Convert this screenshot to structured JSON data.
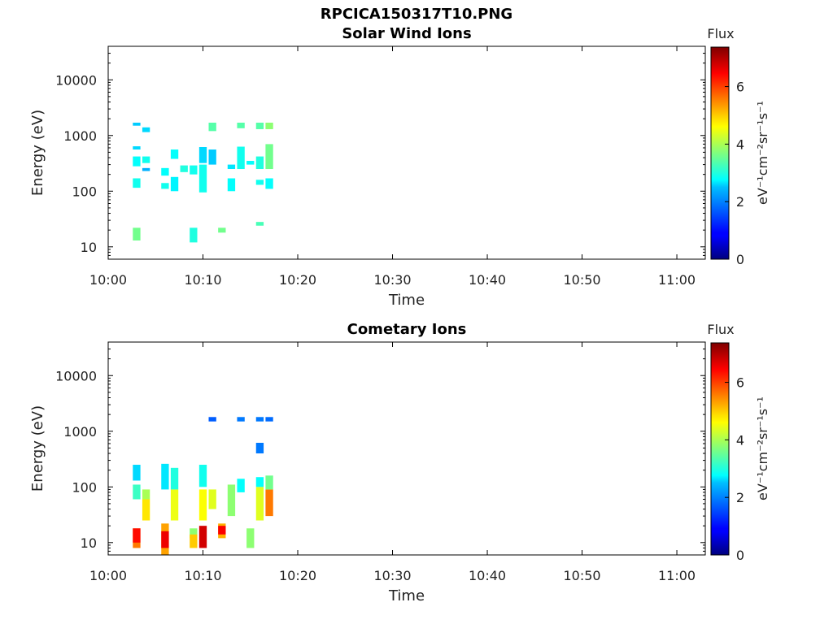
{
  "figure": {
    "title": "RPCICA150317T10.PNG"
  },
  "chart_data": [
    {
      "type": "heatmap",
      "title": "Solar Wind Ions",
      "xlabel": "Time",
      "ylabel": "Energy (eV)",
      "y_scale": "log",
      "ylim": [
        6,
        40000
      ],
      "xlim": [
        "10:00",
        "11:03"
      ],
      "x_ticks": [
        "10:00",
        "10:10",
        "10:20",
        "10:30",
        "10:40",
        "10:50",
        "11:00"
      ],
      "y_ticks": [
        "10",
        "100",
        "1000",
        "10000"
      ],
      "colorbar": {
        "title": "Flux",
        "label": "eV⁻¹cm⁻²sr⁻¹s⁻¹",
        "range": [
          0,
          7.4
        ],
        "ticks": [
          "0",
          "2",
          "4",
          "6"
        ],
        "colormap": "jet"
      },
      "cells": [
        {
          "t": "10:03",
          "emin": 13,
          "emax": 22,
          "v": 3.6
        },
        {
          "t": "10:03",
          "emin": 115,
          "emax": 170,
          "v": 2.9
        },
        {
          "t": "10:03",
          "emin": 280,
          "emax": 420,
          "v": 2.8
        },
        {
          "t": "10:03",
          "emin": 560,
          "emax": 640,
          "v": 2.5
        },
        {
          "t": "10:03",
          "emin": 1500,
          "emax": 1700,
          "v": 2.4
        },
        {
          "t": "10:04",
          "emin": 230,
          "emax": 260,
          "v": 2.2
        },
        {
          "t": "10:04",
          "emin": 320,
          "emax": 420,
          "v": 2.9
        },
        {
          "t": "10:04",
          "emin": 1150,
          "emax": 1400,
          "v": 2.5
        },
        {
          "t": "10:06",
          "emin": 110,
          "emax": 140,
          "v": 2.9
        },
        {
          "t": "10:06",
          "emin": 190,
          "emax": 260,
          "v": 2.8
        },
        {
          "t": "10:07",
          "emin": 100,
          "emax": 180,
          "v": 2.7
        },
        {
          "t": "10:07",
          "emin": 380,
          "emax": 560,
          "v": 2.8
        },
        {
          "t": "10:08",
          "emin": 220,
          "emax": 290,
          "v": 3.0
        },
        {
          "t": "10:09",
          "emin": 200,
          "emax": 290,
          "v": 2.9
        },
        {
          "t": "10:09",
          "emin": 12,
          "emax": 22,
          "v": 3.0
        },
        {
          "t": "10:10",
          "emin": 95,
          "emax": 300,
          "v": 2.9
        },
        {
          "t": "10:10",
          "emin": 320,
          "emax": 620,
          "v": 2.5
        },
        {
          "t": "10:11",
          "emin": 1200,
          "emax": 1700,
          "v": 3.4
        },
        {
          "t": "10:11",
          "emin": 300,
          "emax": 560,
          "v": 2.4
        },
        {
          "t": "10:12",
          "emin": 18,
          "emax": 22,
          "v": 3.6
        },
        {
          "t": "10:13",
          "emin": 100,
          "emax": 170,
          "v": 2.8
        },
        {
          "t": "10:13",
          "emin": 250,
          "emax": 300,
          "v": 2.6
        },
        {
          "t": "10:14",
          "emin": 1350,
          "emax": 1700,
          "v": 3.4
        },
        {
          "t": "10:14",
          "emin": 250,
          "emax": 630,
          "v": 2.9
        },
        {
          "t": "10:15",
          "emin": 300,
          "emax": 350,
          "v": 2.8
        },
        {
          "t": "10:16",
          "emin": 130,
          "emax": 160,
          "v": 2.9
        },
        {
          "t": "10:16",
          "emin": 250,
          "emax": 420,
          "v": 3.0
        },
        {
          "t": "10:16",
          "emin": 24,
          "emax": 28,
          "v": 3.3
        },
        {
          "t": "10:16",
          "emin": 1300,
          "emax": 1700,
          "v": 3.4
        },
        {
          "t": "10:17",
          "emin": 110,
          "emax": 170,
          "v": 2.8
        },
        {
          "t": "10:17",
          "emin": 250,
          "emax": 700,
          "v": 3.6
        },
        {
          "t": "10:17",
          "emin": 1300,
          "emax": 1700,
          "v": 3.8
        }
      ]
    },
    {
      "type": "heatmap",
      "title": "Cometary Ions",
      "xlabel": "Time",
      "ylabel": "Energy (eV)",
      "y_scale": "log",
      "ylim": [
        6,
        40000
      ],
      "xlim": [
        "10:00",
        "11:03"
      ],
      "x_ticks": [
        "10:00",
        "10:10",
        "10:20",
        "10:30",
        "10:40",
        "10:50",
        "11:00"
      ],
      "y_ticks": [
        "10",
        "100",
        "1000",
        "10000"
      ],
      "colorbar": {
        "title": "Flux",
        "label": "eV⁻¹cm⁻²sr⁻¹s⁻¹",
        "range": [
          0,
          7.4
        ],
        "ticks": [
          "0",
          "2",
          "4",
          "6"
        ],
        "colormap": "jet"
      },
      "cells": [
        {
          "t": "10:03",
          "emin": 8,
          "emax": 18,
          "v": 5.6
        },
        {
          "t": "10:03",
          "emin": 10,
          "emax": 18,
          "v": 6.4
        },
        {
          "t": "10:03",
          "emin": 60,
          "emax": 110,
          "v": 3.2
        },
        {
          "t": "10:03",
          "emin": 130,
          "emax": 250,
          "v": 2.5
        },
        {
          "t": "10:04",
          "emin": 25,
          "emax": 60,
          "v": 4.8
        },
        {
          "t": "10:04",
          "emin": 60,
          "emax": 90,
          "v": 4.0
        },
        {
          "t": "10:06",
          "emin": 6,
          "emax": 22,
          "v": 5.3
        },
        {
          "t": "10:06",
          "emin": 8,
          "emax": 16,
          "v": 6.6
        },
        {
          "t": "10:06",
          "emin": 90,
          "emax": 260,
          "v": 2.6
        },
        {
          "t": "10:07",
          "emin": 25,
          "emax": 90,
          "v": 4.5
        },
        {
          "t": "10:07",
          "emin": 90,
          "emax": 220,
          "v": 3.0
        },
        {
          "t": "10:09",
          "emin": 12,
          "emax": 18,
          "v": 3.8
        },
        {
          "t": "10:09",
          "emin": 8,
          "emax": 14,
          "v": 5.0
        },
        {
          "t": "10:10",
          "emin": 8,
          "emax": 20,
          "v": 6.8
        },
        {
          "t": "10:10",
          "emin": 25,
          "emax": 90,
          "v": 4.6
        },
        {
          "t": "10:10",
          "emin": 100,
          "emax": 250,
          "v": 2.9
        },
        {
          "t": "10:11",
          "emin": 1500,
          "emax": 1800,
          "v": 1.6
        },
        {
          "t": "10:11",
          "emin": 40,
          "emax": 90,
          "v": 4.4
        },
        {
          "t": "10:12",
          "emin": 12,
          "emax": 22,
          "v": 5.2
        },
        {
          "t": "10:12",
          "emin": 14,
          "emax": 20,
          "v": 6.5
        },
        {
          "t": "10:13",
          "emin": 30,
          "emax": 110,
          "v": 3.8
        },
        {
          "t": "10:14",
          "emin": 1500,
          "emax": 1800,
          "v": 1.8
        },
        {
          "t": "10:14",
          "emin": 80,
          "emax": 140,
          "v": 2.8
        },
        {
          "t": "10:15",
          "emin": 8,
          "emax": 18,
          "v": 3.8
        },
        {
          "t": "10:16",
          "emin": 1500,
          "emax": 1800,
          "v": 1.8
        },
        {
          "t": "10:16",
          "emin": 400,
          "emax": 620,
          "v": 1.8
        },
        {
          "t": "10:16",
          "emin": 25,
          "emax": 100,
          "v": 4.4
        },
        {
          "t": "10:16",
          "emin": 100,
          "emax": 150,
          "v": 2.8
        },
        {
          "t": "10:17",
          "emin": 1500,
          "emax": 1800,
          "v": 1.7
        },
        {
          "t": "10:17",
          "emin": 30,
          "emax": 90,
          "v": 5.6
        },
        {
          "t": "10:17",
          "emin": 90,
          "emax": 160,
          "v": 3.6
        }
      ]
    }
  ]
}
